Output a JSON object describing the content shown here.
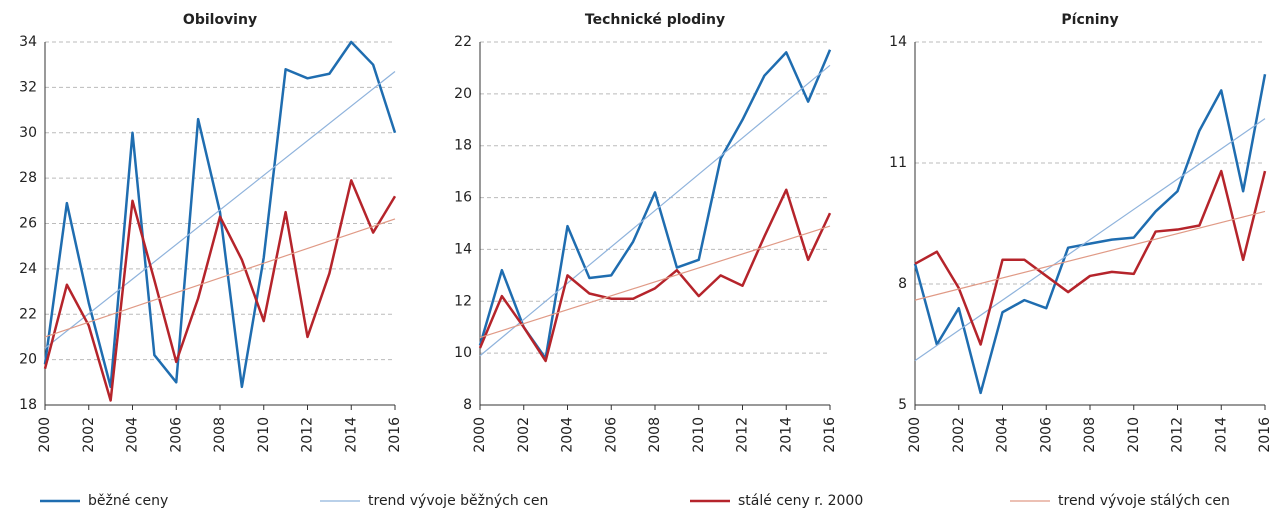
{
  "legend": [
    "běžné ceny",
    "trend vývoje běžných cen",
    "stálé ceny r. 2000",
    "trend vývoje stálých cen"
  ],
  "chart_data": [
    {
      "type": "line",
      "title": "Obiloviny",
      "xlim": [
        2000,
        2016
      ],
      "xticks": [
        2000,
        2002,
        2004,
        2006,
        2008,
        2010,
        2012,
        2014,
        2016
      ],
      "ylim": [
        18,
        34
      ],
      "yticks": [
        18,
        20,
        22,
        24,
        26,
        28,
        30,
        32,
        34
      ],
      "grid": true,
      "x": [
        2000,
        2001,
        2002,
        2003,
        2004,
        2005,
        2006,
        2007,
        2008,
        2009,
        2010,
        2011,
        2012,
        2013,
        2014,
        2015,
        2016
      ],
      "series": [
        {
          "color": "#1f6db0",
          "width": 2.5,
          "values": [
            19.8,
            26.9,
            22.5,
            18.8,
            30.0,
            20.2,
            19.0,
            30.6,
            26.5,
            18.8,
            24.5,
            32.8,
            32.4,
            32.6,
            34.0,
            33.0,
            30.0
          ]
        },
        {
          "color": "#8fb3dc",
          "width": 1.2,
          "x": [
            2000,
            2016
          ],
          "values": [
            20.5,
            32.7
          ]
        },
        {
          "color": "#b5242b",
          "width": 2.5,
          "values": [
            19.6,
            23.3,
            21.5,
            18.2,
            27.0,
            23.5,
            19.9,
            22.7,
            26.3,
            24.4,
            21.7,
            26.5,
            21.0,
            23.8,
            27.9,
            25.6,
            27.2
          ]
        },
        {
          "color": "#e09a86",
          "width": 1.2,
          "x": [
            2000,
            2016
          ],
          "values": [
            21.0,
            26.2
          ]
        }
      ]
    },
    {
      "type": "line",
      "title": "Technické plodiny",
      "xlim": [
        2000,
        2016
      ],
      "xticks": [
        2000,
        2002,
        2004,
        2006,
        2008,
        2010,
        2012,
        2014,
        2016
      ],
      "ylim": [
        8,
        22
      ],
      "yticks": [
        8,
        10,
        12,
        14,
        16,
        18,
        20,
        22
      ],
      "grid": true,
      "x": [
        2000,
        2001,
        2002,
        2003,
        2004,
        2005,
        2006,
        2007,
        2008,
        2009,
        2010,
        2011,
        2012,
        2013,
        2014,
        2015,
        2016
      ],
      "series": [
        {
          "color": "#1f6db0",
          "width": 2.5,
          "values": [
            10.3,
            13.2,
            11.0,
            9.8,
            14.9,
            12.9,
            13.0,
            14.3,
            16.2,
            13.3,
            13.6,
            17.5,
            19.0,
            20.7,
            21.6,
            19.7,
            21.7
          ]
        },
        {
          "color": "#8fb3dc",
          "width": 1.2,
          "x": [
            2000,
            2016
          ],
          "values": [
            9.9,
            21.1
          ]
        },
        {
          "color": "#b5242b",
          "width": 2.5,
          "values": [
            10.2,
            12.2,
            11.0,
            9.7,
            13.0,
            12.3,
            12.1,
            12.1,
            12.5,
            13.2,
            12.2,
            13.0,
            12.6,
            14.5,
            16.3,
            13.6,
            15.4
          ]
        },
        {
          "color": "#e09a86",
          "width": 1.2,
          "x": [
            2000,
            2016
          ],
          "values": [
            10.6,
            14.9
          ]
        }
      ]
    },
    {
      "type": "line",
      "title": "Pícniny",
      "xlim": [
        2000,
        2016
      ],
      "xticks": [
        2000,
        2002,
        2004,
        2006,
        2008,
        2010,
        2012,
        2014,
        2016
      ],
      "ylim": [
        5,
        14
      ],
      "yticks": [
        5,
        8,
        11,
        14
      ],
      "grid": true,
      "x": [
        2000,
        2001,
        2002,
        2003,
        2004,
        2005,
        2006,
        2007,
        2008,
        2009,
        2010,
        2011,
        2012,
        2013,
        2014,
        2015,
        2016
      ],
      "series": [
        {
          "color": "#1f6db0",
          "width": 2.5,
          "values": [
            8.5,
            6.5,
            7.4,
            5.3,
            7.3,
            7.6,
            7.4,
            8.9,
            9.0,
            9.1,
            9.15,
            9.8,
            10.3,
            11.8,
            12.8,
            10.3,
            13.2
          ]
        },
        {
          "color": "#8fb3dc",
          "width": 1.2,
          "x": [
            2000,
            2016
          ],
          "values": [
            6.1,
            12.1
          ]
        },
        {
          "color": "#b5242b",
          "width": 2.5,
          "values": [
            8.5,
            8.8,
            7.9,
            6.5,
            8.6,
            8.6,
            8.2,
            7.8,
            8.2,
            8.3,
            8.25,
            9.3,
            9.35,
            9.45,
            10.8,
            8.6,
            10.8
          ]
        },
        {
          "color": "#e09a86",
          "width": 1.2,
          "x": [
            2000,
            2016
          ],
          "values": [
            7.6,
            9.8
          ]
        }
      ]
    }
  ]
}
